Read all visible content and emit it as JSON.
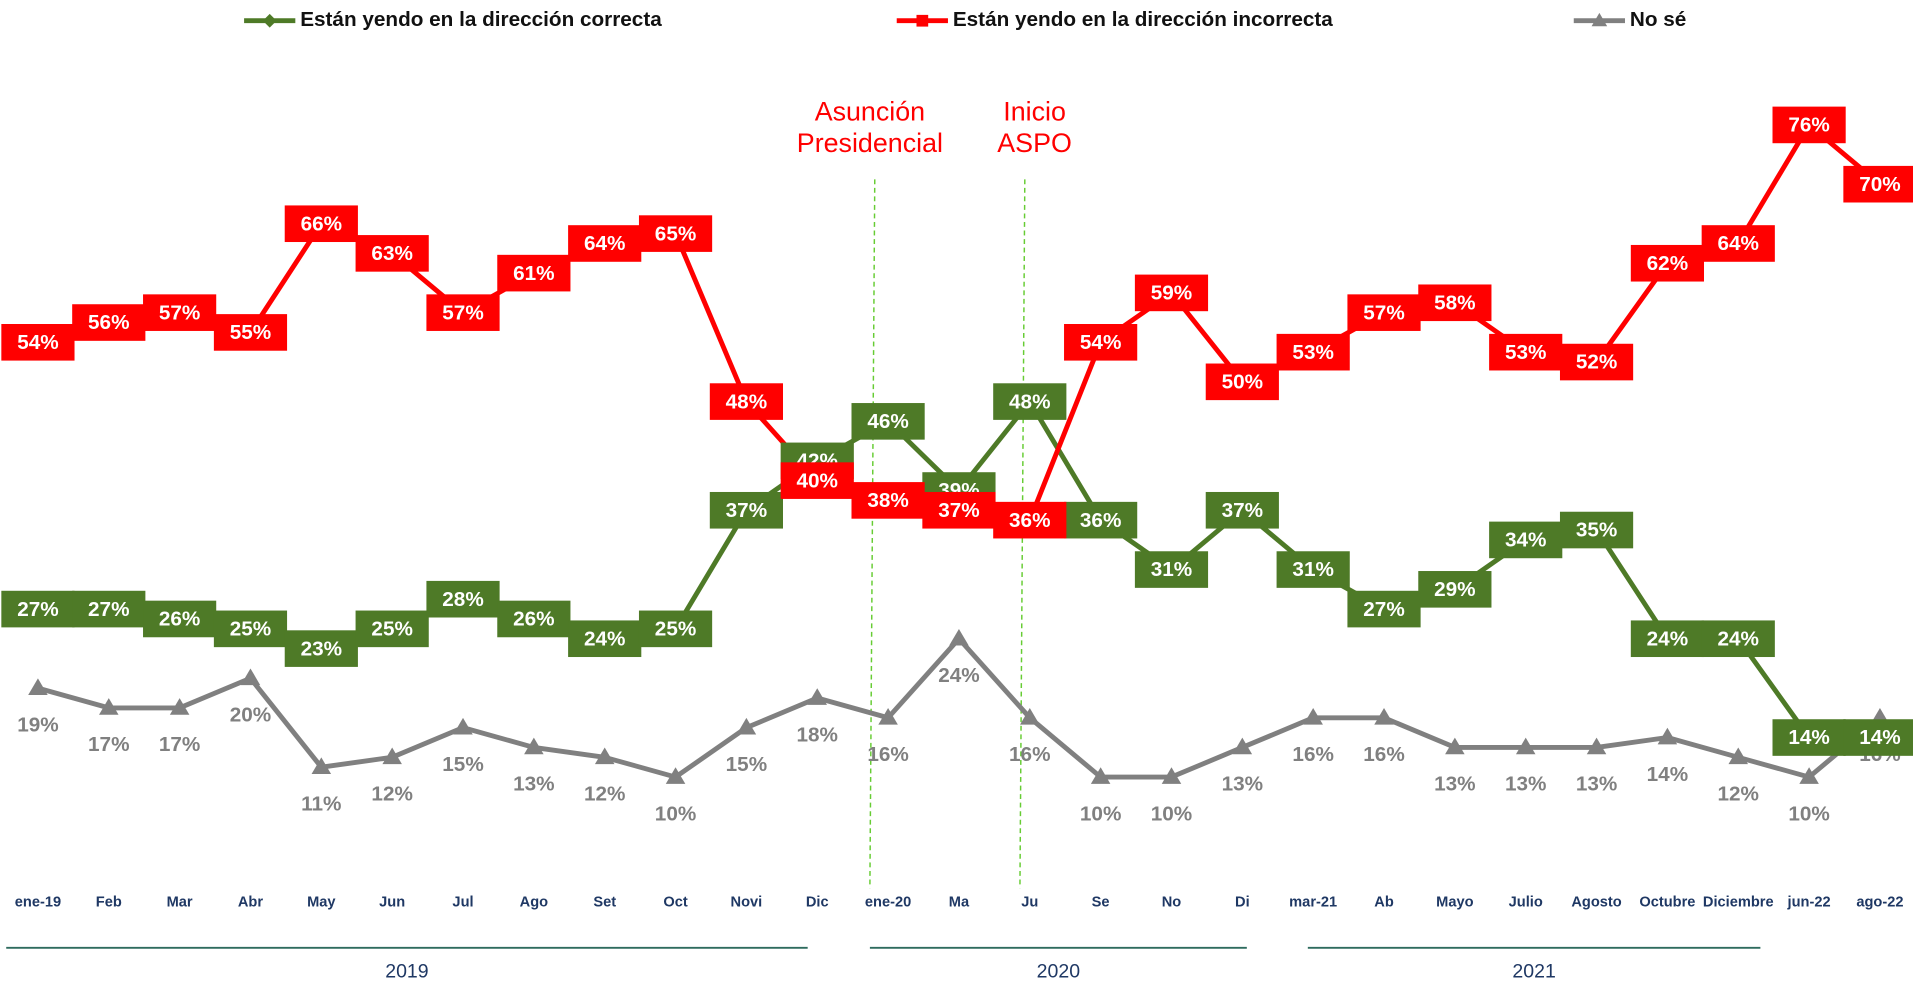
{
  "chart_data": {
    "type": "line",
    "categories": [
      "ene-19",
      "Feb",
      "Mar",
      "Abr",
      "May",
      "Jun",
      "Jul",
      "Ago",
      "Set",
      "Oct",
      "Novi",
      "Dic",
      "ene-20",
      "Ma",
      "Ju",
      "Se",
      "No",
      "Di",
      "mar-21",
      "Ab",
      "Mayo",
      "Julio",
      "Agosto",
      "Octubre",
      "Diciembre",
      "jun-22",
      "ago-22"
    ],
    "series": [
      {
        "name": "Están yendo en la dirección correcta",
        "color": "#4e7a27",
        "marker": "diamond",
        "values": [
          27,
          27,
          26,
          25,
          23,
          25,
          28,
          26,
          24,
          25,
          37,
          42,
          46,
          39,
          48,
          36,
          31,
          37,
          31,
          27,
          29,
          34,
          35,
          24,
          24,
          14,
          14
        ],
        "value_labels": [
          "27%",
          "27%",
          "26%",
          "25%",
          "23%",
          "25%",
          "28%",
          "26%",
          "24%",
          "25%",
          "37%",
          "42%",
          "46%",
          "39%",
          "48%",
          "36%",
          "31%",
          "37%",
          "31%",
          "27%",
          "29%",
          "34%",
          "35%",
          "24%",
          "24%",
          "14%",
          "14%"
        ]
      },
      {
        "name": "Están yendo en la dirección incorrecta",
        "color": "#ff0000",
        "marker": "square",
        "values": [
          54,
          56,
          57,
          55,
          66,
          63,
          57,
          61,
          64,
          65,
          48,
          40,
          38,
          37,
          36,
          54,
          59,
          50,
          53,
          57,
          58,
          53,
          52,
          62,
          64,
          76,
          70
        ],
        "value_labels": [
          "54%",
          "56%",
          "57%",
          "55%",
          "66%",
          "63%",
          "57%",
          "61%",
          "64%",
          "65%",
          "48%",
          "40%",
          "38%",
          "37%",
          "36%",
          "54%",
          "59%",
          "50%",
          "53%",
          "57%",
          "58%",
          "53%",
          "52%",
          "62%",
          "64%",
          "76%",
          "70%"
        ]
      },
      {
        "name": "No sé",
        "color": "#808080",
        "marker": "triangle",
        "values": [
          19,
          17,
          17,
          20,
          11,
          12,
          15,
          13,
          12,
          10,
          15,
          18,
          16,
          24,
          16,
          10,
          10,
          13,
          16,
          16,
          13,
          13,
          13,
          14,
          12,
          10,
          16
        ],
        "value_labels": [
          "19%",
          "17%",
          "17%",
          "20%",
          "11%",
          "12%",
          "15%",
          "13%",
          "12%",
          "10%",
          "15%",
          "18%",
          "16%",
          "24%",
          "16%",
          "10%",
          "10%",
          "13%",
          "16%",
          "16%",
          "13%",
          "13%",
          "13%",
          "14%",
          "12%",
          "10%",
          "16%"
        ]
      }
    ],
    "annotations": [
      "Asunción Presidencial",
      "Inicio ASPO"
    ],
    "year_groups": [
      "2019",
      "2020",
      "2021"
    ]
  }
}
